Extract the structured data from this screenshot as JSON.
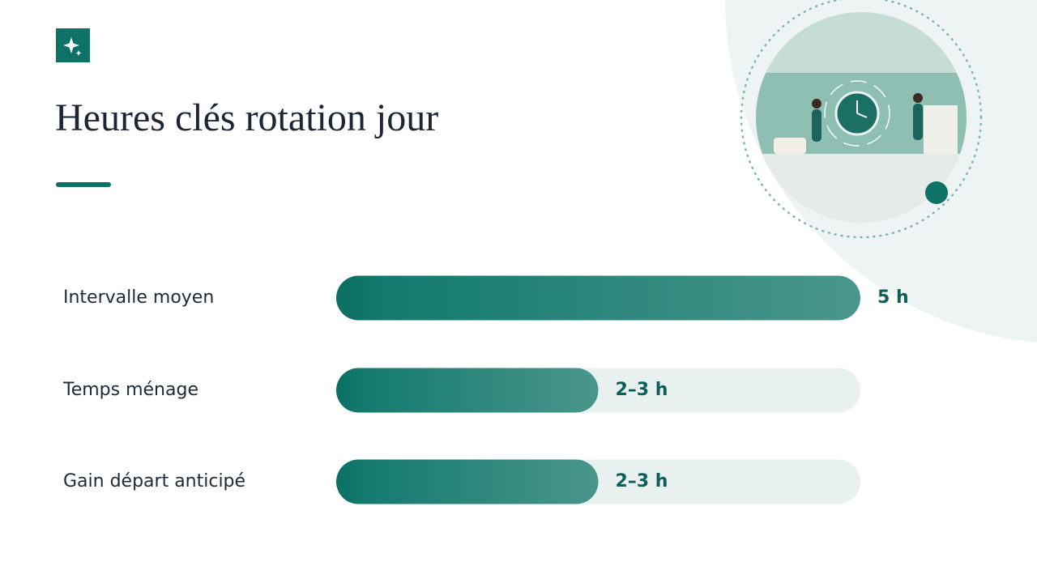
{
  "chart_data": {
    "type": "bar",
    "orientation": "horizontal",
    "title": "Heures clés rotation jour",
    "categories": [
      "Intervalle moyen",
      "Temps ménage",
      "Gain départ anticipé"
    ],
    "values": [
      5,
      2.5,
      2.5
    ],
    "value_labels": [
      "5 h",
      "2–3 h",
      "2–3 h"
    ],
    "xlim": [
      0,
      5
    ],
    "color": "#0e7366"
  }
}
